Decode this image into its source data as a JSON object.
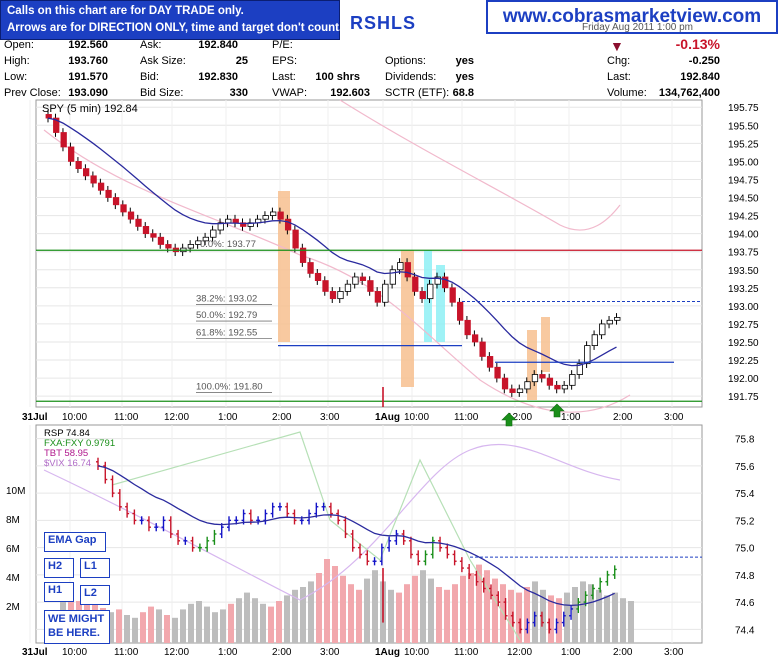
{
  "colors": {
    "up": "#1414c8",
    "down": "#c8142a",
    "up_rsp": "#1414c8",
    "green": "#1a8f1a",
    "accent": "#1c3fc2"
  },
  "callout": {
    "line1": "Calls on this chart are for DAY TRADE only.",
    "line2": "Arrows are for DIRECTION ONLY, time and target don't count."
  },
  "site": "www.cobrasmarketview.com",
  "ticker": "RSHLS",
  "header_date": "Friday  Aug 2011 1:00 pm",
  "quote": {
    "open_l": "Open:",
    "open": "192.560",
    "high_l": "High:",
    "high": "193.760",
    "low_l": "Low:",
    "low": "191.570",
    "prev_l": "Prev Close:",
    "prev": "193.090",
    "ask_l": "Ask:",
    "ask": "192.840",
    "asksize_l": "Ask Size:",
    "asksize": "25",
    "bid_l": "Bid:",
    "bid": "192.830",
    "bidsize_l": "Bid Size:",
    "bidsize": "330",
    "pe_l": "P/E:",
    "eps_l": "EPS:",
    "last_l": "Last:",
    "last": "100 shrs",
    "vwap_l": "VWAP:",
    "vwap": "192.603",
    "options_l": "Options:",
    "options": "yes",
    "div_l": "Dividends:",
    "div": "yes",
    "sctr_l": "SCTR (ETF):",
    "sctr": "68.8",
    "pct": "-0.13%",
    "chg_l": "Chg:",
    "chg": "-0.250",
    "last2_l": "Last:",
    "last2": "192.840",
    "vol_l": "Volume:",
    "vol": "134,762,400"
  },
  "labels": {
    "ema_gap": "EMA Gap",
    "h2": "H2",
    "h1": "H1",
    "l1": "L1",
    "l2": "L2",
    "might": "WE MIGHT BE HERE."
  },
  "chart_data": {
    "type": "candlestick",
    "top": {
      "legend": "SPY (5 min) 192.84",
      "ylim": [
        191.6,
        195.85
      ],
      "yticks": [
        "195.75",
        "195.50",
        "195.25",
        "195.00",
        "194.75",
        "194.50",
        "194.25",
        "194.00",
        "193.75",
        "193.50",
        "193.25",
        "193.00",
        "192.75",
        "192.50",
        "192.25",
        "192.00",
        "191.75"
      ],
      "close": [
        195.6,
        195.4,
        195.2,
        195.0,
        194.9,
        194.8,
        194.7,
        194.6,
        194.5,
        194.4,
        194.3,
        194.2,
        194.1,
        194.0,
        193.95,
        193.85,
        193.8,
        193.75,
        193.8,
        193.85,
        193.9,
        193.95,
        194.05,
        194.15,
        194.2,
        194.15,
        194.1,
        194.15,
        194.2,
        194.25,
        194.3,
        194.2,
        194.05,
        193.8,
        193.6,
        193.45,
        193.35,
        193.2,
        193.1,
        193.2,
        193.3,
        193.4,
        193.35,
        193.2,
        193.05,
        193.3,
        193.5,
        193.6,
        193.4,
        193.2,
        193.1,
        193.3,
        193.4,
        193.25,
        193.05,
        192.8,
        192.6,
        192.5,
        192.3,
        192.15,
        192.0,
        191.85,
        191.8,
        191.85,
        191.95,
        192.05,
        192.0,
        191.9,
        191.85,
        191.9,
        192.05,
        192.2,
        192.45,
        192.6,
        192.75,
        192.8,
        192.84
      ],
      "fib": [
        {
          "label": "0.0%: 193.77",
          "price": 193.77
        },
        {
          "label": "38.2%: 193.02",
          "price": 193.02
        },
        {
          "label": "50.0%: 192.79",
          "price": 192.79
        },
        {
          "label": "61.8%: 192.55",
          "price": 192.55
        },
        {
          "label": "100.0%: 191.80",
          "price": 191.8
        }
      ],
      "hlines": [
        193.77,
        193.06,
        192.22,
        191.68
      ],
      "xticks": [
        "31Jul",
        "10:00",
        "11:00",
        "12:00",
        "1:00",
        "2:00",
        "3:00",
        "1Aug",
        "10:00",
        "11:00",
        "12:00",
        "1:00",
        "2:00",
        "3:00"
      ]
    },
    "bottom": {
      "legend": [
        "RSP 74.84",
        "FXA:FXY 0.9791",
        "TBT 58.95",
        "$VIX 16.74"
      ],
      "ylim": [
        74.3,
        75.9
      ],
      "yticks": [
        "75.8",
        "75.6",
        "75.4",
        "75.2",
        "75.0",
        "74.8",
        "74.6",
        "74.4"
      ],
      "vol_ticks": [
        "10M",
        "8M",
        "6M",
        "4M",
        "2M"
      ],
      "close": [
        75.6,
        75.5,
        75.4,
        75.3,
        75.25,
        75.2,
        75.2,
        75.15,
        75.15,
        75.2,
        75.1,
        75.05,
        75.05,
        75.0,
        75.0,
        75.05,
        75.1,
        75.15,
        75.2,
        75.2,
        75.25,
        75.2,
        75.2,
        75.25,
        75.3,
        75.3,
        75.25,
        75.2,
        75.2,
        75.25,
        75.3,
        75.3,
        75.25,
        75.2,
        75.1,
        75.0,
        74.95,
        74.9,
        74.9,
        75.0,
        75.05,
        75.1,
        75.05,
        74.95,
        74.9,
        74.95,
        75.05,
        75.0,
        74.95,
        74.9,
        74.85,
        74.8,
        74.75,
        74.7,
        74.65,
        74.6,
        74.5,
        74.45,
        74.4,
        74.45,
        74.5,
        74.45,
        74.4,
        74.45,
        74.5,
        74.55,
        74.6,
        74.65,
        74.7,
        74.75,
        74.8,
        74.84
      ],
      "volume": [
        4,
        3.5,
        3,
        2.8,
        3.2,
        2.5,
        2.2,
        2.4,
        2,
        1.8,
        2.2,
        2.6,
        2.4,
        2,
        1.8,
        2.4,
        2.8,
        3,
        2.6,
        2.2,
        2.4,
        2.8,
        3.2,
        3.6,
        3.2,
        2.8,
        2.6,
        3,
        3.4,
        3.8,
        4,
        4.4,
        5,
        6,
        5.5,
        4.8,
        4.2,
        3.8,
        4.6,
        5.2,
        4.4,
        3.8,
        3.6,
        4.2,
        4.8,
        5.2,
        4.6,
        4,
        3.8,
        4.2,
        4.8,
        5,
        5.6,
        5.2,
        4.6,
        4.2,
        3.8,
        3.6,
        4,
        4.4,
        3.8,
        3.4,
        3.2,
        3.6,
        4,
        4.4,
        4.2,
        3.8,
        3.4,
        3.6,
        3.2,
        3
      ]
    }
  }
}
